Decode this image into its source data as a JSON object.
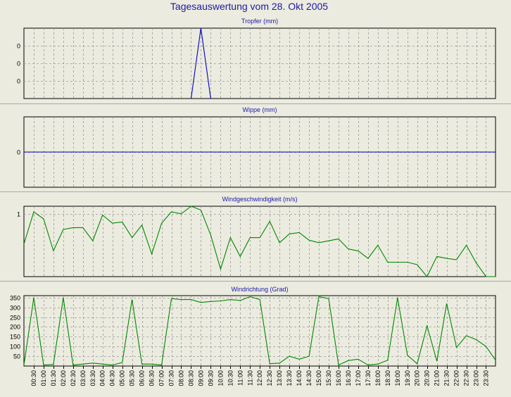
{
  "page_title": "Tagesauswertung vom 28. Okt 2005",
  "colors": {
    "background": "#ecebdf",
    "title": "#1a1aa8",
    "rain": "#0000cc",
    "wind": "#008800",
    "grid": "#9a9a9a",
    "separator": "#a8a8a8"
  },
  "chart_data": [
    {
      "type": "line",
      "title": "Tropfer (mm)",
      "color": "#0000cc",
      "grid": true,
      "ylim": [
        0,
        0.04
      ],
      "yticks": [
        0.01,
        0.02,
        0.03
      ],
      "ytick_labels": [
        "0",
        "0",
        "0"
      ],
      "x": [
        "08:30",
        "09:00",
        "09:30"
      ],
      "values": [
        0,
        0.04,
        0
      ]
    },
    {
      "type": "line",
      "title": "Wippe (mm)",
      "color": "#0000cc",
      "grid": true,
      "ylim": [
        -1,
        1
      ],
      "yticks": [
        0
      ],
      "ytick_labels": [
        "0"
      ],
      "x": [
        "00:00",
        "23:59"
      ],
      "values": [
        0,
        0
      ]
    },
    {
      "type": "line",
      "title": "Windgeschwindigkeit (m/s)",
      "color": "#008800",
      "grid": true,
      "ylim": [
        0,
        1.12
      ],
      "yticks": [
        1
      ],
      "ytick_labels": [
        "1"
      ],
      "x": [
        "00:00",
        "00:30",
        "01:00",
        "01:30",
        "02:00",
        "02:30",
        "03:00",
        "03:30",
        "04:00",
        "04:30",
        "05:00",
        "05:30",
        "06:00",
        "06:30",
        "07:00",
        "07:30",
        "08:00",
        "08:30",
        "09:00",
        "09:30",
        "10:00",
        "10:30",
        "11:00",
        "11:30",
        "12:00",
        "12:30",
        "13:00",
        "13:30",
        "14:00",
        "14:30",
        "15:00",
        "15:30",
        "16:00",
        "16:30",
        "17:00",
        "17:30",
        "18:00",
        "18:30",
        "19:00",
        "19:30",
        "20:00",
        "20:30",
        "21:00",
        "21:30",
        "22:00",
        "22:30",
        "23:00",
        "23:30",
        "23:59"
      ],
      "values": [
        0.52,
        1.03,
        0.92,
        0.41,
        0.75,
        0.78,
        0.78,
        0.57,
        0.98,
        0.85,
        0.87,
        0.62,
        0.82,
        0.36,
        0.85,
        1.03,
        1.0,
        1.12,
        1.06,
        0.66,
        0.12,
        0.62,
        0.32,
        0.62,
        0.62,
        0.88,
        0.54,
        0.68,
        0.7,
        0.58,
        0.54,
        0.57,
        0.6,
        0.44,
        0.41,
        0.29,
        0.5,
        0.23,
        0.23,
        0.23,
        0.19,
        0.0,
        0.32,
        0.29,
        0.27,
        0.5,
        0.22,
        0.0,
        0.0
      ]
    },
    {
      "type": "line",
      "title": "Windrichtung (Grad)",
      "color": "#008800",
      "grid": true,
      "ylim": [
        0,
        360
      ],
      "yticks": [
        50,
        100,
        150,
        200,
        250,
        300,
        350
      ],
      "ytick_labels": [
        "50",
        "100",
        "150",
        "200",
        "250",
        "300",
        "350"
      ],
      "x": [
        "00:00",
        "00:30",
        "01:00",
        "01:30",
        "02:00",
        "02:30",
        "03:00",
        "03:30",
        "04:00",
        "04:30",
        "05:00",
        "05:30",
        "06:00",
        "06:30",
        "07:00",
        "07:30",
        "08:00",
        "08:30",
        "09:00",
        "09:30",
        "10:00",
        "10:30",
        "11:00",
        "11:30",
        "12:00",
        "12:30",
        "13:00",
        "13:30",
        "14:00",
        "14:30",
        "15:00",
        "15:30",
        "16:00",
        "16:30",
        "17:00",
        "17:30",
        "18:00",
        "18:30",
        "19:00",
        "19:30",
        "20:00",
        "20:30",
        "21:00",
        "21:30",
        "22:00",
        "22:30",
        "23:00",
        "23:30",
        "23:59"
      ],
      "values": [
        5,
        350,
        5,
        8,
        350,
        5,
        10,
        15,
        10,
        5,
        18,
        340,
        10,
        10,
        5,
        345,
        340,
        340,
        325,
        330,
        333,
        340,
        335,
        355,
        340,
        12,
        15,
        50,
        35,
        50,
        355,
        345,
        5,
        28,
        35,
        5,
        10,
        30,
        350,
        55,
        12,
        205,
        25,
        320,
        95,
        155,
        135,
        100,
        30
      ]
    }
  ],
  "x_axis": {
    "tick_labels": [
      "00:30",
      "01:00",
      "01:30",
      "02:00",
      "02:30",
      "03:00",
      "03:30",
      "04:00",
      "04:30",
      "05:00",
      "05:30",
      "06:00",
      "06:30",
      "07:00",
      "07:30",
      "08:00",
      "08:30",
      "09:00",
      "09:30",
      "10:00",
      "10:30",
      "11:00",
      "11:30",
      "12:00",
      "12:30",
      "13:00",
      "13:30",
      "14:00",
      "14:30",
      "15:00",
      "15:30",
      "16:00",
      "16:30",
      "17:00",
      "17:30",
      "18:00",
      "18:30",
      "19:00",
      "19:30",
      "20:00",
      "20:30",
      "21:00",
      "21:30",
      "22:00",
      "22:30",
      "23:00",
      "23:30"
    ]
  }
}
